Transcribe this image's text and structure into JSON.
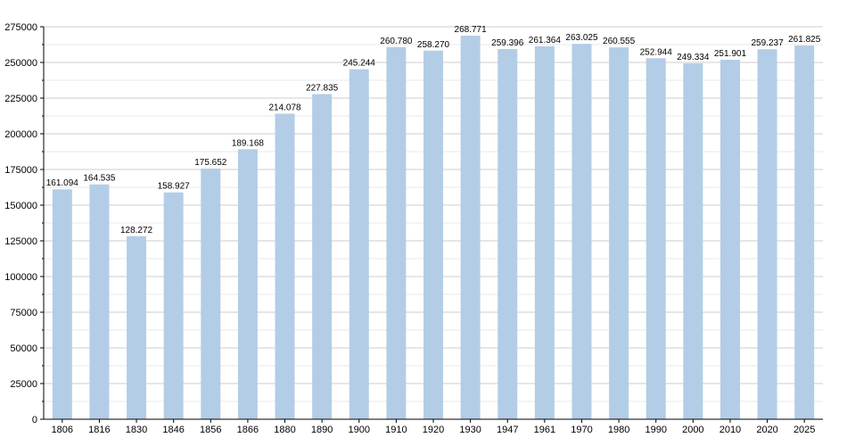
{
  "chart_data": {
    "type": "bar",
    "title": "",
    "xlabel": "",
    "ylabel": "",
    "categories": [
      "1806",
      "1816",
      "1830",
      "1846",
      "1856",
      "1866",
      "1880",
      "1890",
      "1900",
      "1910",
      "1920",
      "1930",
      "1947",
      "1961",
      "1970",
      "1980",
      "1990",
      "2000",
      "2010",
      "2020",
      "2025"
    ],
    "values": [
      161094,
      164535,
      128272,
      158927,
      175652,
      189168,
      214078,
      227835,
      245244,
      260780,
      258270,
      268771,
      259396,
      261364,
      263025,
      260555,
      252944,
      249334,
      251901,
      259237,
      261825
    ],
    "value_labels": [
      "161.094",
      "164.535",
      "128.272",
      "158.927",
      "175.652",
      "189.168",
      "214.078",
      "227.835",
      "245.244",
      "260.780",
      "258.270",
      "268.771",
      "259.396",
      "261.364",
      "263.025",
      "260.555",
      "252.944",
      "249.334",
      "251.901",
      "259.237",
      "261.825"
    ],
    "ylim": [
      0,
      275000
    ],
    "yticks": [
      0,
      25000,
      50000,
      75000,
      100000,
      125000,
      150000,
      175000,
      200000,
      225000,
      250000,
      275000
    ],
    "ytick_labels": [
      "0",
      "25000",
      "50000",
      "75000",
      "100000",
      "125000",
      "150000",
      "175000",
      "200000",
      "225000",
      "250000",
      "275000"
    ],
    "grid": true,
    "bar_color": "#b3cde6",
    "grid_color": "#cccccc"
  }
}
